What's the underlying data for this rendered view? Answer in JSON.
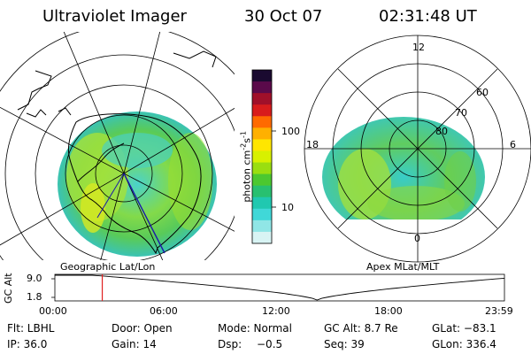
{
  "header": {
    "title": "Ultraviolet Imager",
    "date": "30 Oct 07",
    "time": "02:31:48 UT"
  },
  "left_panel": {
    "caption": "Geographic Lat/Lon"
  },
  "right_panel": {
    "caption": "Apex MLat/MLT",
    "mlt_labels": [
      "12",
      "18",
      "6",
      "0"
    ],
    "mlat_labels": [
      "60",
      "70",
      "80"
    ]
  },
  "colorbar": {
    "label": "photon cm",
    "label_sup": "-2",
    "label_s": "s",
    "label_s_sup": "-1",
    "ticks": [
      "100",
      "10"
    ],
    "colors": [
      "#1a0a30",
      "#5a0a4a",
      "#a0102a",
      "#d81c1c",
      "#ff6a00",
      "#ffb000",
      "#ffe600",
      "#d8f000",
      "#9ade10",
      "#4cc830",
      "#28c070",
      "#20c8b0",
      "#40d8d8",
      "#90e6e6",
      "#d8f4f4"
    ]
  },
  "altitude_plot": {
    "ylabel": "GC Alt",
    "yticks": [
      "9.0",
      "1.8"
    ],
    "xticks": [
      "00:00",
      "06:00",
      "12:00",
      "18:00",
      "23:59"
    ],
    "current_hour": 2.53,
    "min_hour": 14.0
  },
  "info": {
    "flt": "Flt: LBHL",
    "ip": "IP: 36.0",
    "door": "Door: Open",
    "gain": "Gain: 14",
    "mode": "Mode: Normal",
    "dsp_label": "Dsp:",
    "dsp_value": "−0.5",
    "gcalt": "GC Alt: 8.7 Re",
    "seq": "Seq: 39",
    "glat": "GLat: −83.1",
    "glon": "GLon: 336.4"
  }
}
